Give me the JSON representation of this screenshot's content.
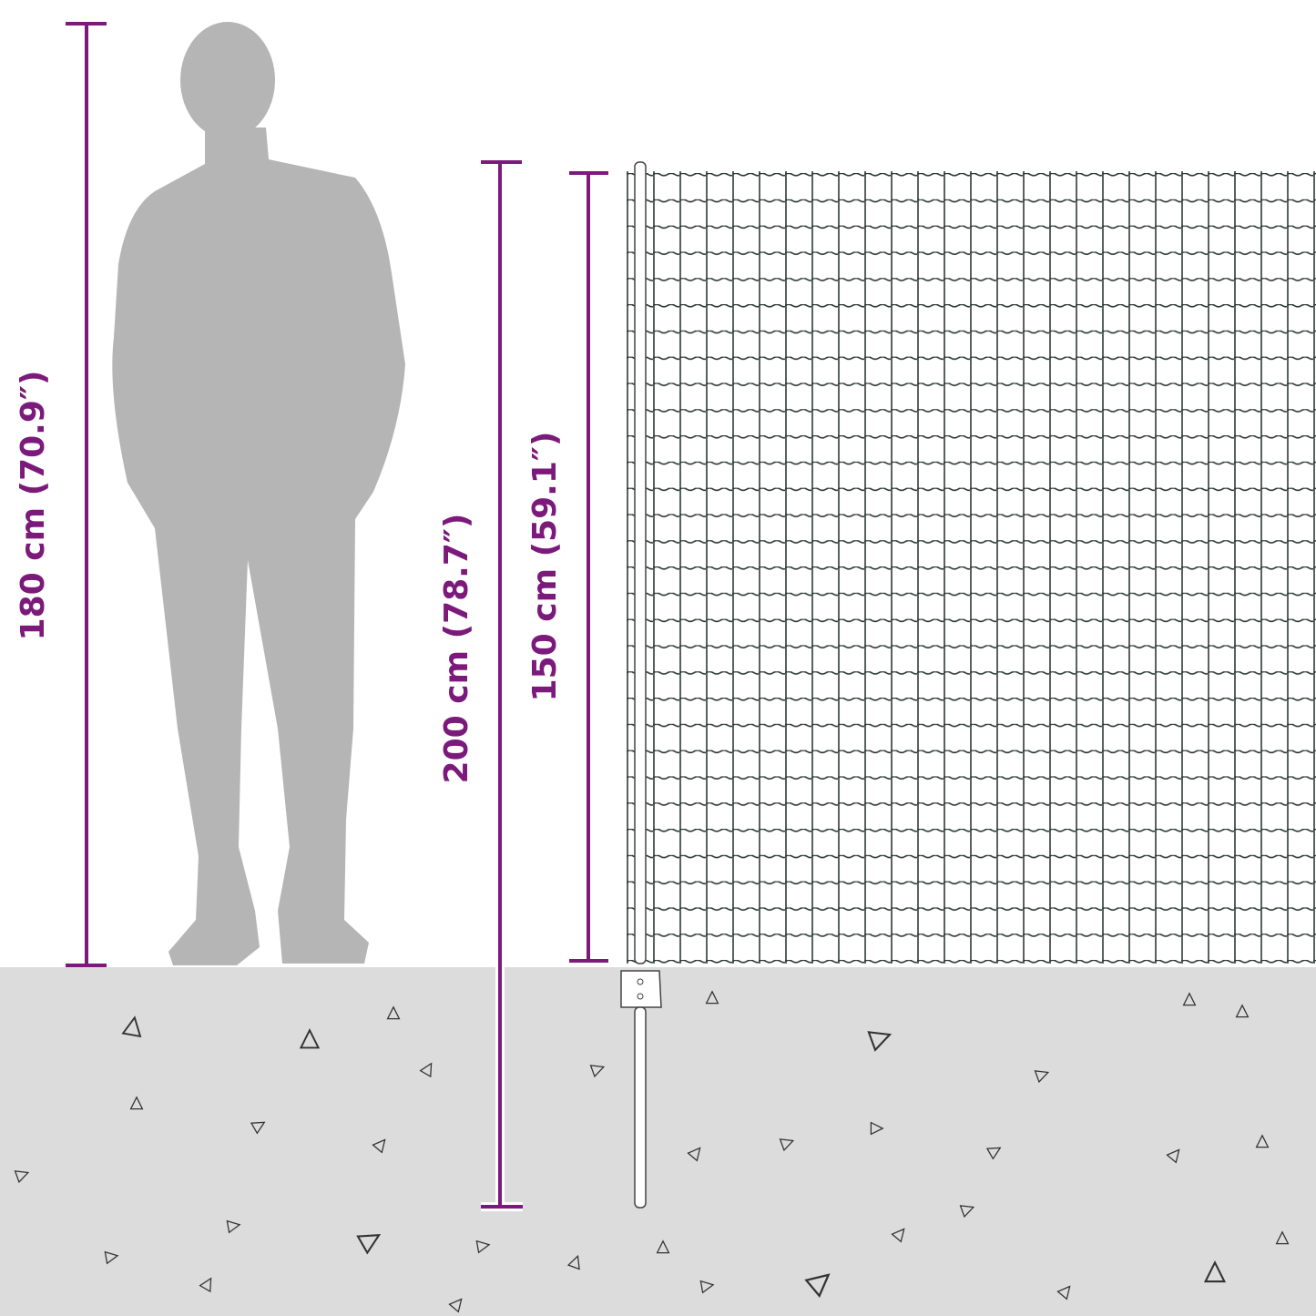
{
  "dimensions": {
    "person_height": "180 cm (70.9″)",
    "post_height": "200 cm (78.7″)",
    "fence_height": "150 cm (59.1″)"
  }
}
